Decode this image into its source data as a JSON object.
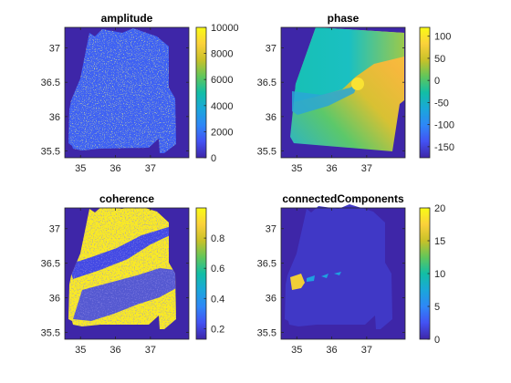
{
  "chart_data": [
    {
      "type": "heatmap",
      "title": "amplitude",
      "xlabel": "",
      "ylabel": "",
      "xlim": [
        34.55,
        38.1
      ],
      "ylim": [
        35.4,
        37.3
      ],
      "xticks": [
        35,
        36,
        37
      ],
      "yticks": [
        35.5,
        36,
        36.5,
        37
      ],
      "xtick_labels": [
        "35",
        "36",
        "37"
      ],
      "ytick_labels": [
        "35.5",
        "36",
        "36.5",
        "37"
      ],
      "colorbar": {
        "range": [
          0,
          10000
        ],
        "ticks": [
          0,
          2000,
          4000,
          6000,
          8000,
          10000
        ],
        "tick_labels": [
          "0",
          "2000",
          "4000",
          "6000",
          "8000",
          "10000"
        ]
      },
      "background_level": 0.0,
      "dominant_level": 0.15,
      "highlight_level": 0.95
    },
    {
      "type": "heatmap",
      "title": "phase",
      "xlabel": "",
      "ylabel": "",
      "xlim": [
        34.55,
        38.1
      ],
      "ylim": [
        35.4,
        37.3
      ],
      "xticks": [
        35,
        36,
        37
      ],
      "yticks": [
        35.5,
        36,
        36.5,
        37
      ],
      "xtick_labels": [
        "35",
        "36",
        "37"
      ],
      "ytick_labels": [
        "35.5",
        "36",
        "36.5",
        "37"
      ],
      "colorbar": {
        "range": [
          -175,
          120
        ],
        "ticks": [
          -150,
          -100,
          -50,
          0,
          50,
          100
        ],
        "tick_labels": [
          "-150",
          "-100",
          "-50",
          "0",
          "50",
          "100"
        ]
      },
      "background_level": 0.0,
      "dominant_level": 0.8
    },
    {
      "type": "heatmap",
      "title": "coherence",
      "xlabel": "",
      "ylabel": "",
      "xlim": [
        34.55,
        38.1
      ],
      "ylim": [
        35.4,
        37.3
      ],
      "xticks": [
        35,
        36,
        37
      ],
      "yticks": [
        35.5,
        36,
        36.5,
        37
      ],
      "xtick_labels": [
        "35",
        "36",
        "37"
      ],
      "ytick_labels": [
        "35.5",
        "36",
        "36.5",
        "37"
      ],
      "colorbar": {
        "range": [
          0.13,
          1.0
        ],
        "ticks": [
          0.2,
          0.4,
          0.6,
          0.8
        ],
        "tick_labels": [
          "0.2",
          "0.4",
          "0.6",
          "0.8"
        ]
      },
      "background_level": 0.0,
      "dominant_level": 0.95,
      "low_level": 0.1
    },
    {
      "type": "heatmap",
      "title": "connectedComponents",
      "xlabel": "",
      "ylabel": "",
      "xlim": [
        34.55,
        38.1
      ],
      "ylim": [
        35.4,
        37.3
      ],
      "xticks": [
        35,
        36,
        37
      ],
      "yticks": [
        35.5,
        36,
        36.5,
        37
      ],
      "xtick_labels": [
        "35",
        "36",
        "37"
      ],
      "ytick_labels": [
        "35.5",
        "36",
        "36.5",
        "37"
      ],
      "colorbar": {
        "range": [
          0,
          20
        ],
        "ticks": [
          0,
          5,
          10,
          15,
          20
        ],
        "tick_labels": [
          "0",
          "5",
          "10",
          "15",
          "20"
        ]
      },
      "background_level": 0.0,
      "dominant_level": 0.05,
      "highlight_level": 0.85
    }
  ]
}
